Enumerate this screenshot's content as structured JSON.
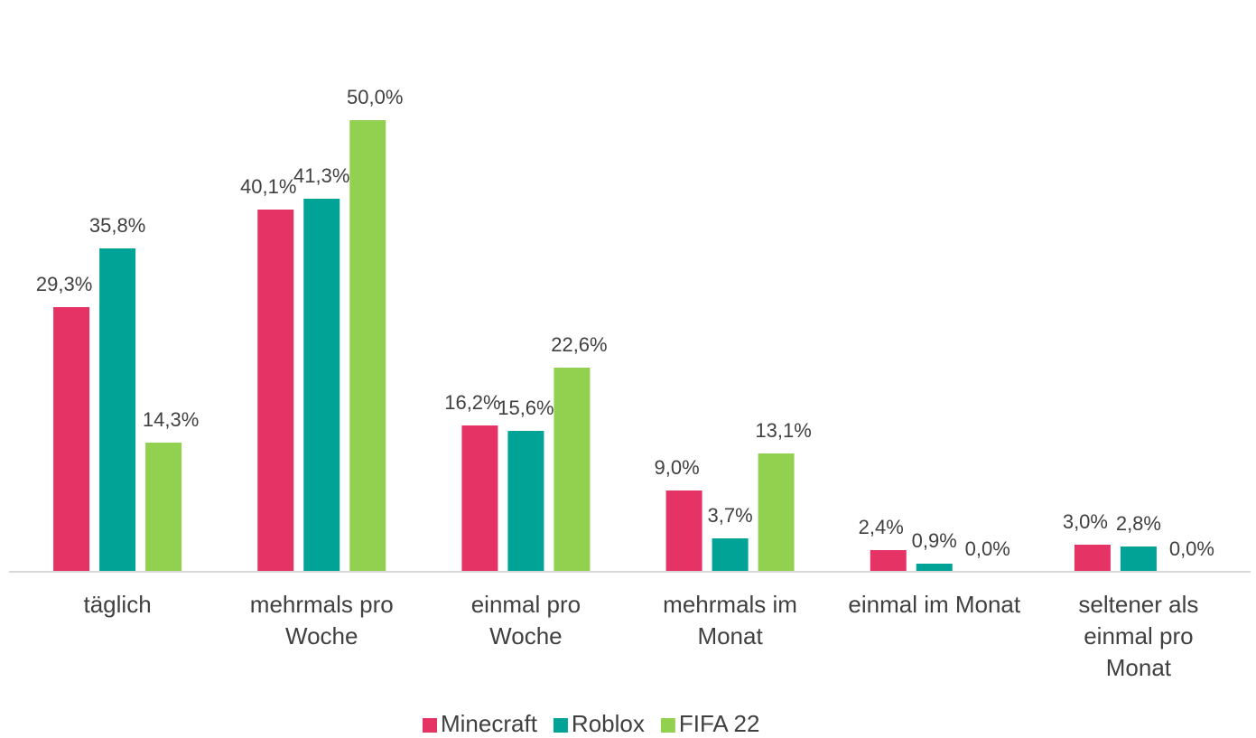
{
  "chart_data": {
    "type": "bar",
    "categories": [
      "täglich",
      "mehrmals pro Woche",
      "einmal pro Woche",
      "mehrmals im Monat",
      "einmal im Monat",
      "seltener als einmal pro Monat"
    ],
    "series": [
      {
        "name": "Minecraft",
        "color": "#e63366",
        "values": [
          29.3,
          40.1,
          16.2,
          9.0,
          2.4,
          3.0
        ],
        "value_labels": [
          "29,3%",
          "40,1%",
          "16,2%",
          "9,0%",
          "2,4%",
          "3,0%"
        ]
      },
      {
        "name": "Roblox",
        "color": "#00a396",
        "values": [
          35.8,
          41.3,
          15.6,
          3.7,
          0.9,
          2.8
        ],
        "value_labels": [
          "35,8%",
          "41,3%",
          "15,6%",
          "3,7%",
          "0,9%",
          "2,8%"
        ]
      },
      {
        "name": "FIFA 22",
        "color": "#92d050",
        "values": [
          14.3,
          50.0,
          22.6,
          13.1,
          0.0,
          0.0
        ],
        "value_labels": [
          "14,3%",
          "50,0%",
          "22,6%",
          "13,1%",
          "0,0%",
          "0,0%"
        ]
      }
    ],
    "ylim": [
      0,
      50
    ],
    "legend": "bottom"
  }
}
